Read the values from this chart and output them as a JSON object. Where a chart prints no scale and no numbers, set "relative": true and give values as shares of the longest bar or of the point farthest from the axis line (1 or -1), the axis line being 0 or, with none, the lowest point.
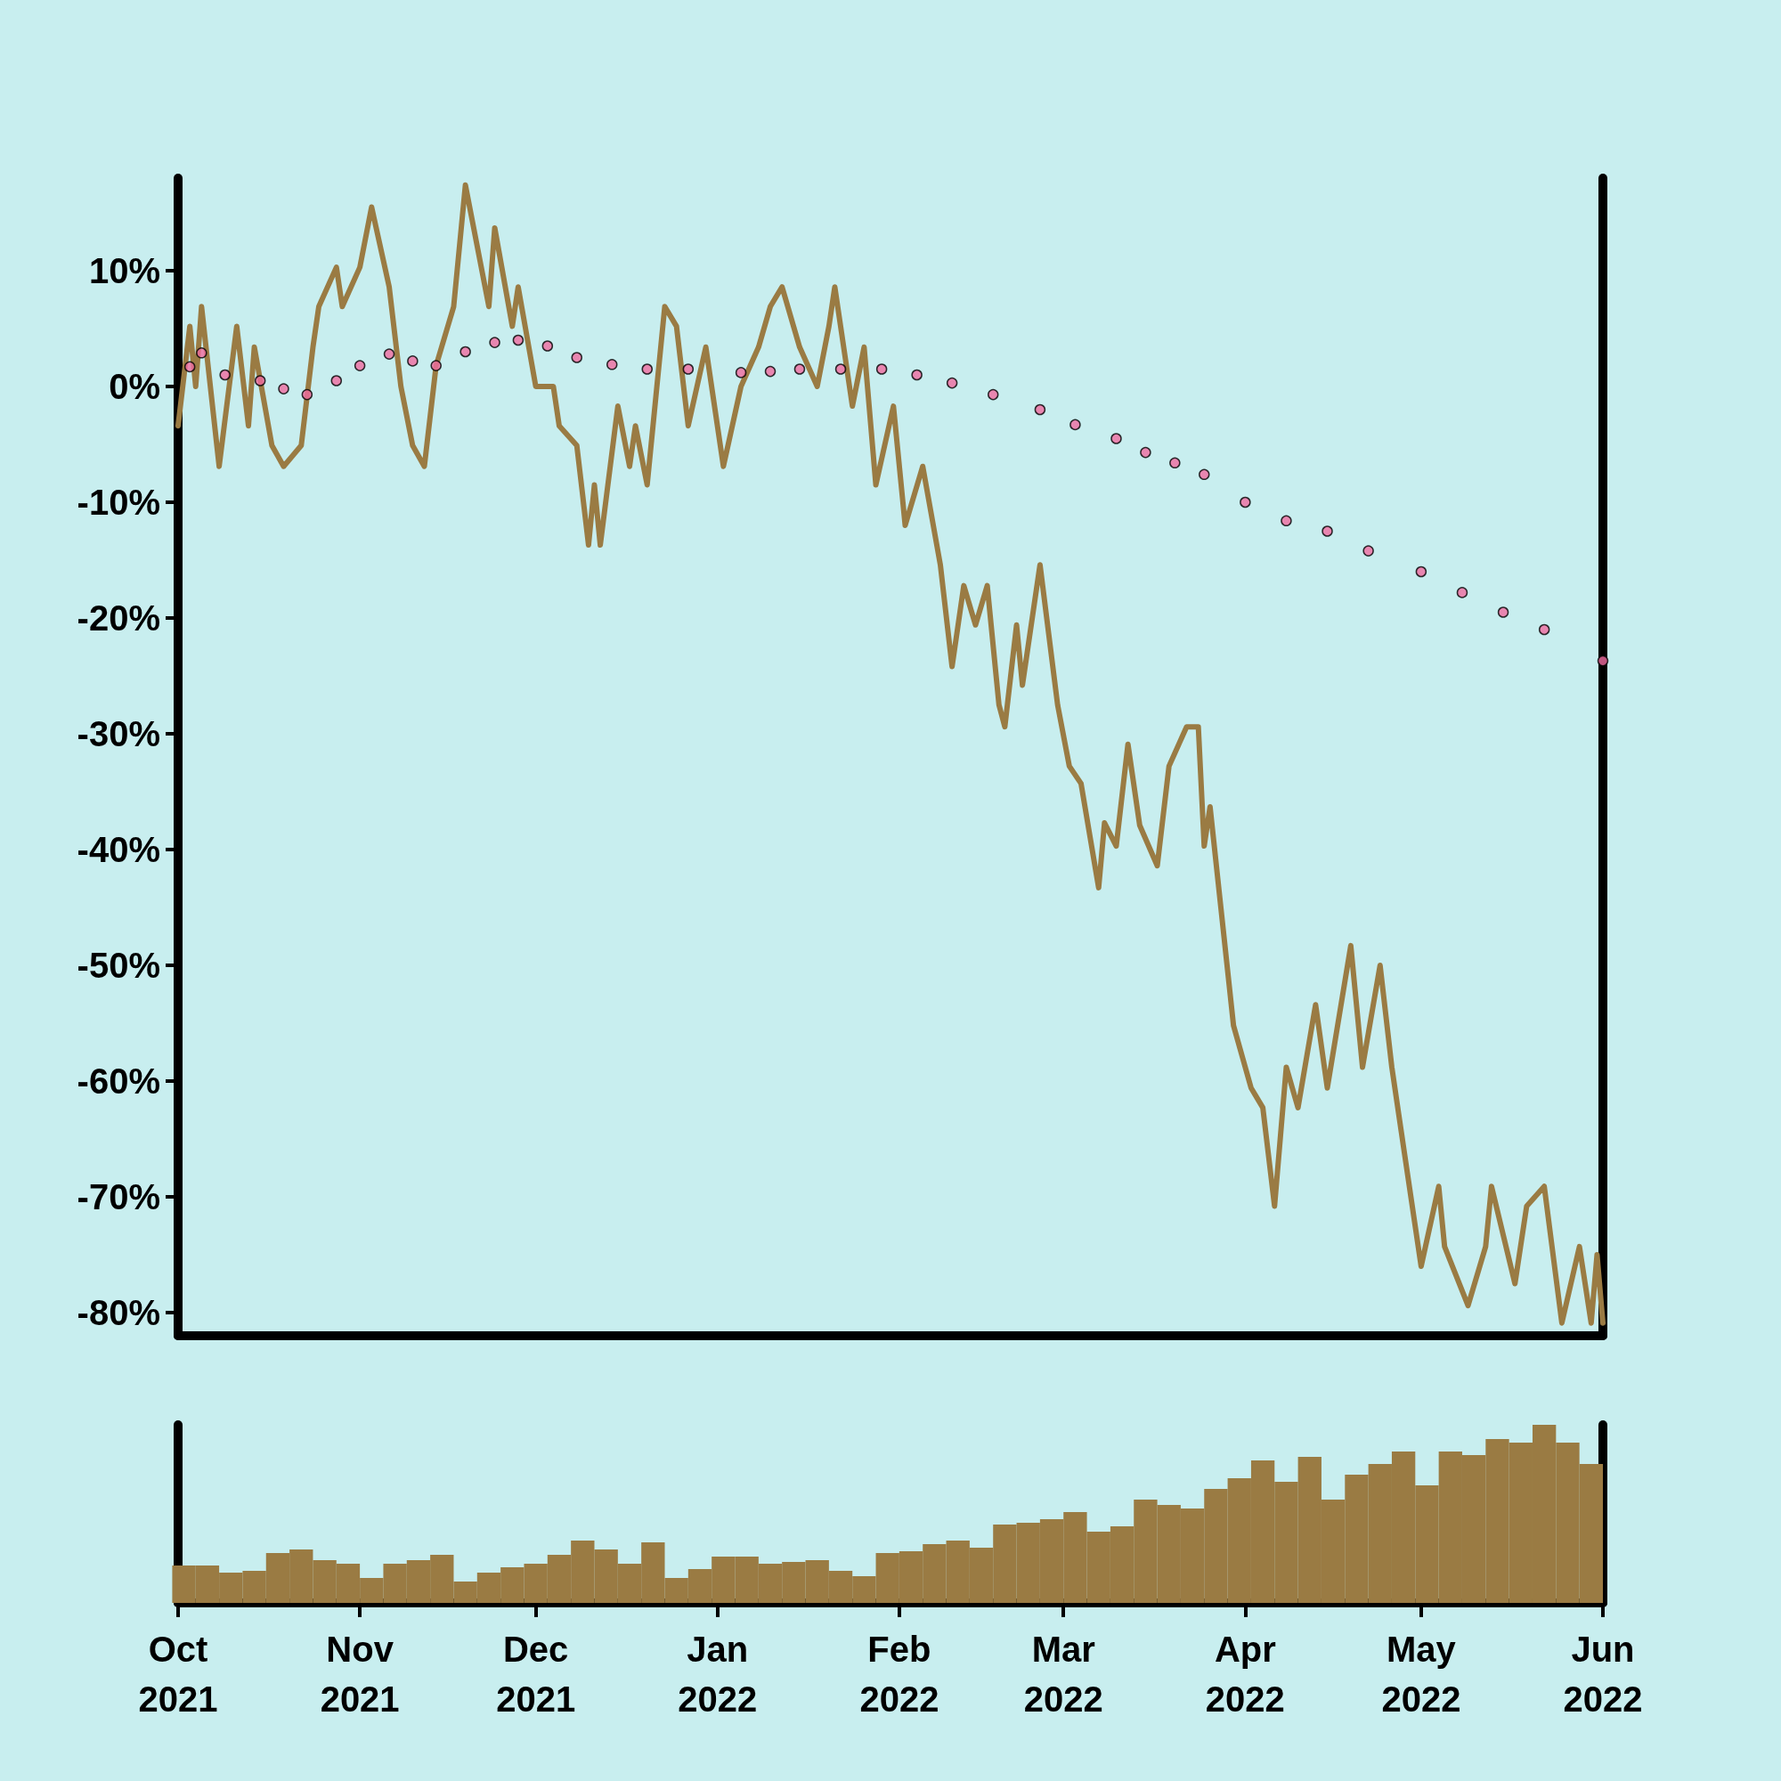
{
  "chart_data": [
    {
      "type": "line",
      "xlim": [
        "2021-10-01",
        "2022-06-01"
      ],
      "ylim": [
        -82,
        18
      ],
      "yticks": [
        {
          "value": -80,
          "label": "-80%"
        },
        {
          "value": -70,
          "label": "-70%"
        },
        {
          "value": -60,
          "label": "-60%"
        },
        {
          "value": -50,
          "label": "-50%"
        },
        {
          "value": -40,
          "label": "-40%"
        },
        {
          "value": -30,
          "label": "-30%"
        },
        {
          "value": -20,
          "label": "-20%"
        },
        {
          "value": -10,
          "label": "-10%"
        },
        {
          "value": 0,
          "label": "0%"
        },
        {
          "value": 10,
          "label": "10%"
        }
      ],
      "tick_labels": "y",
      "grid": false,
      "series": [
        {
          "color": "#9a7b43",
          "line_style": "solid",
          "x": [
            "2021-10-01",
            "2021-10-03",
            "2021-10-04",
            "2021-10-05",
            "2021-10-08",
            "2021-10-11",
            "2021-10-13",
            "2021-10-14",
            "2021-10-17",
            "2021-10-19",
            "2021-10-22",
            "2021-10-24",
            "2021-10-25",
            "2021-10-28",
            "2021-10-29",
            "2021-11-01",
            "2021-11-03",
            "2021-11-06",
            "2021-11-08",
            "2021-11-10",
            "2021-11-12",
            "2021-11-14",
            "2021-11-17",
            "2021-11-19",
            "2021-11-23",
            "2021-11-24",
            "2021-11-27",
            "2021-11-28",
            "2021-12-01",
            "2021-12-04",
            "2021-12-05",
            "2021-12-08",
            "2021-12-10",
            "2021-12-11",
            "2021-12-12",
            "2021-12-15",
            "2021-12-17",
            "2021-12-18",
            "2021-12-20",
            "2021-12-23",
            "2021-12-25",
            "2021-12-27",
            "2021-12-30",
            "2022-01-02",
            "2022-01-05",
            "2022-01-08",
            "2022-01-10",
            "2022-01-12",
            "2022-01-15",
            "2022-01-18",
            "2022-01-20",
            "2022-01-21",
            "2022-01-24",
            "2022-01-26",
            "2022-01-28",
            "2022-01-31",
            "2022-02-02",
            "2022-02-05",
            "2022-02-08",
            "2022-02-10",
            "2022-02-12",
            "2022-02-14",
            "2022-02-16",
            "2022-02-18",
            "2022-02-19",
            "2022-02-21",
            "2022-02-22",
            "2022-02-25",
            "2022-02-28",
            "2022-03-02",
            "2022-03-04",
            "2022-03-07",
            "2022-03-08",
            "2022-03-10",
            "2022-03-12",
            "2022-03-14",
            "2022-03-17",
            "2022-03-19",
            "2022-03-22",
            "2022-03-24",
            "2022-03-25",
            "2022-03-26",
            "2022-03-30",
            "2022-04-02",
            "2022-04-04",
            "2022-04-06",
            "2022-04-08",
            "2022-04-10",
            "2022-04-13",
            "2022-04-15",
            "2022-04-19",
            "2022-04-21",
            "2022-04-24",
            "2022-04-26",
            "2022-04-28",
            "2022-05-01",
            "2022-05-04",
            "2022-05-05",
            "2022-05-09",
            "2022-05-12",
            "2022-05-13",
            "2022-05-17",
            "2022-05-19",
            "2022-05-22",
            "2022-05-25",
            "2022-05-28",
            "2022-05-30",
            "2022-05-31",
            "2022-06-01"
          ],
          "values": [
            -3.4,
            5.2,
            0,
            6.9,
            -6.9,
            5.2,
            -3.4,
            3.4,
            -5.1,
            -6.9,
            -5.1,
            3.4,
            6.9,
            10.3,
            6.9,
            10.3,
            15.5,
            8.6,
            0,
            -5.1,
            -6.9,
            1.8,
            6.9,
            17.4,
            6.9,
            13.7,
            5.2,
            8.6,
            0,
            0,
            -3.4,
            -5.1,
            -13.7,
            -8.5,
            -13.7,
            -1.7,
            -6.9,
            -3.4,
            -8.5,
            6.9,
            5.2,
            -3.4,
            3.4,
            -6.9,
            0,
            3.4,
            6.9,
            8.6,
            3.4,
            0,
            5.2,
            8.6,
            -1.7,
            3.4,
            -8.5,
            -1.7,
            -12,
            -6.9,
            -15.4,
            -24.2,
            -17.2,
            -20.6,
            -17.2,
            -27.5,
            -29.4,
            -20.6,
            -25.8,
            -15.4,
            -27.5,
            -32.8,
            -34.3,
            -43.3,
            -37.7,
            -39.7,
            -30.9,
            -37.9,
            -41.4,
            -32.8,
            -29.4,
            -29.4,
            -39.7,
            -36.3,
            -55.2,
            -60.6,
            -62.3,
            -70.8,
            -58.8,
            -62.3,
            -53.4,
            -60.6,
            -48.3,
            -58.8,
            -50,
            -58.8,
            -65.7,
            -76,
            -69.1,
            -74.3,
            -79.4,
            -74.3,
            -69.1,
            -77.5,
            -70.8,
            -69.1,
            -80.9,
            -74.3,
            -80.9,
            -75,
            -80.9
          ]
        },
        {
          "type": "scatter",
          "color": "#f06ba0",
          "marker": "circle",
          "x": [
            "2021-10-03",
            "2021-10-05",
            "2021-10-09",
            "2021-10-15",
            "2021-10-19",
            "2021-10-23",
            "2021-10-28",
            "2021-11-01",
            "2021-11-06",
            "2021-11-10",
            "2021-11-14",
            "2021-11-19",
            "2021-11-24",
            "2021-11-28",
            "2021-12-03",
            "2021-12-08",
            "2021-12-14",
            "2021-12-20",
            "2021-12-27",
            "2022-01-05",
            "2022-01-10",
            "2022-01-15",
            "2022-01-22",
            "2022-01-29",
            "2022-02-04",
            "2022-02-10",
            "2022-02-17",
            "2022-02-25",
            "2022-03-03",
            "2022-03-10",
            "2022-03-15",
            "2022-03-20",
            "2022-03-25",
            "2022-04-01",
            "2022-04-08",
            "2022-04-15",
            "2022-04-22",
            "2022-05-01",
            "2022-05-08",
            "2022-05-15",
            "2022-05-22",
            "2022-06-01"
          ],
          "values": [
            1.7,
            2.9,
            1.0,
            0.5,
            -0.2,
            -0.7,
            0.5,
            1.8,
            2.8,
            2.2,
            1.8,
            3.0,
            3.8,
            4.0,
            3.5,
            2.5,
            1.9,
            1.5,
            1.5,
            1.2,
            1.3,
            1.5,
            1.5,
            1.5,
            1.0,
            0.3,
            -0.7,
            -2.0,
            -3.3,
            -4.5,
            -5.7,
            -6.6,
            -7.6,
            -10.0,
            -11.6,
            -12.5,
            -14.2,
            -16.0,
            -17.8,
            -19.5,
            -21.0,
            -23.7
          ]
        }
      ]
    },
    {
      "type": "bar",
      "relative": true,
      "color": "#9a7b43",
      "grid": false,
      "xlim": [
        "2021-10-01",
        "2022-06-01"
      ],
      "xticks": [
        {
          "value": "2021-10-01",
          "label": "Oct\n2021"
        },
        {
          "value": "2021-11-01",
          "label": "Nov\n2021"
        },
        {
          "value": "2021-12-01",
          "label": "Dec\n2021"
        },
        {
          "value": "2022-01-01",
          "label": "Jan\n2022"
        },
        {
          "value": "2022-02-01",
          "label": "Feb\n2022"
        },
        {
          "value": "2022-03-01",
          "label": "Mar\n2022"
        },
        {
          "value": "2022-04-01",
          "label": "Apr\n2022"
        },
        {
          "value": "2022-05-01",
          "label": "May\n2022"
        },
        {
          "value": "2022-06-01",
          "label": "Jun\n2022"
        }
      ],
      "x": [
        "2021-10-02",
        "2021-10-06",
        "2021-10-10",
        "2021-10-14",
        "2021-10-18",
        "2021-10-22",
        "2021-10-26",
        "2021-10-30",
        "2021-11-03",
        "2021-11-07",
        "2021-11-11",
        "2021-11-15",
        "2021-11-19",
        "2021-11-23",
        "2021-11-27",
        "2021-12-01",
        "2021-12-05",
        "2021-12-09",
        "2021-12-13",
        "2021-12-17",
        "2021-12-21",
        "2021-12-25",
        "2021-12-29",
        "2022-01-02",
        "2022-01-06",
        "2022-01-10",
        "2022-01-14",
        "2022-01-18",
        "2022-01-22",
        "2022-01-26",
        "2022-01-30",
        "2022-02-03",
        "2022-02-07",
        "2022-02-11",
        "2022-02-15",
        "2022-02-19",
        "2022-02-23",
        "2022-02-27",
        "2022-03-03",
        "2022-03-07",
        "2022-03-11",
        "2022-03-15",
        "2022-03-19",
        "2022-03-23",
        "2022-03-27",
        "2022-03-31",
        "2022-04-04",
        "2022-04-08",
        "2022-04-12",
        "2022-04-16",
        "2022-04-20",
        "2022-04-24",
        "2022-04-28",
        "2022-05-02",
        "2022-05-06",
        "2022-05-10",
        "2022-05-14",
        "2022-05-18",
        "2022-05-22",
        "2022-05-26",
        "2022-05-30"
      ],
      "values": [
        0.21,
        0.21,
        0.17,
        0.18,
        0.28,
        0.3,
        0.24,
        0.22,
        0.14,
        0.22,
        0.24,
        0.27,
        0.12,
        0.17,
        0.2,
        0.22,
        0.27,
        0.35,
        0.3,
        0.22,
        0.34,
        0.14,
        0.19,
        0.26,
        0.26,
        0.22,
        0.23,
        0.24,
        0.18,
        0.15,
        0.28,
        0.29,
        0.33,
        0.35,
        0.31,
        0.44,
        0.45,
        0.47,
        0.51,
        0.4,
        0.43,
        0.58,
        0.55,
        0.53,
        0.64,
        0.7,
        0.8,
        0.68,
        0.82,
        0.58,
        0.72,
        0.78,
        0.85,
        0.66,
        0.85,
        0.83,
        0.92,
        0.9,
        1,
        0.9,
        0.78
      ]
    }
  ]
}
